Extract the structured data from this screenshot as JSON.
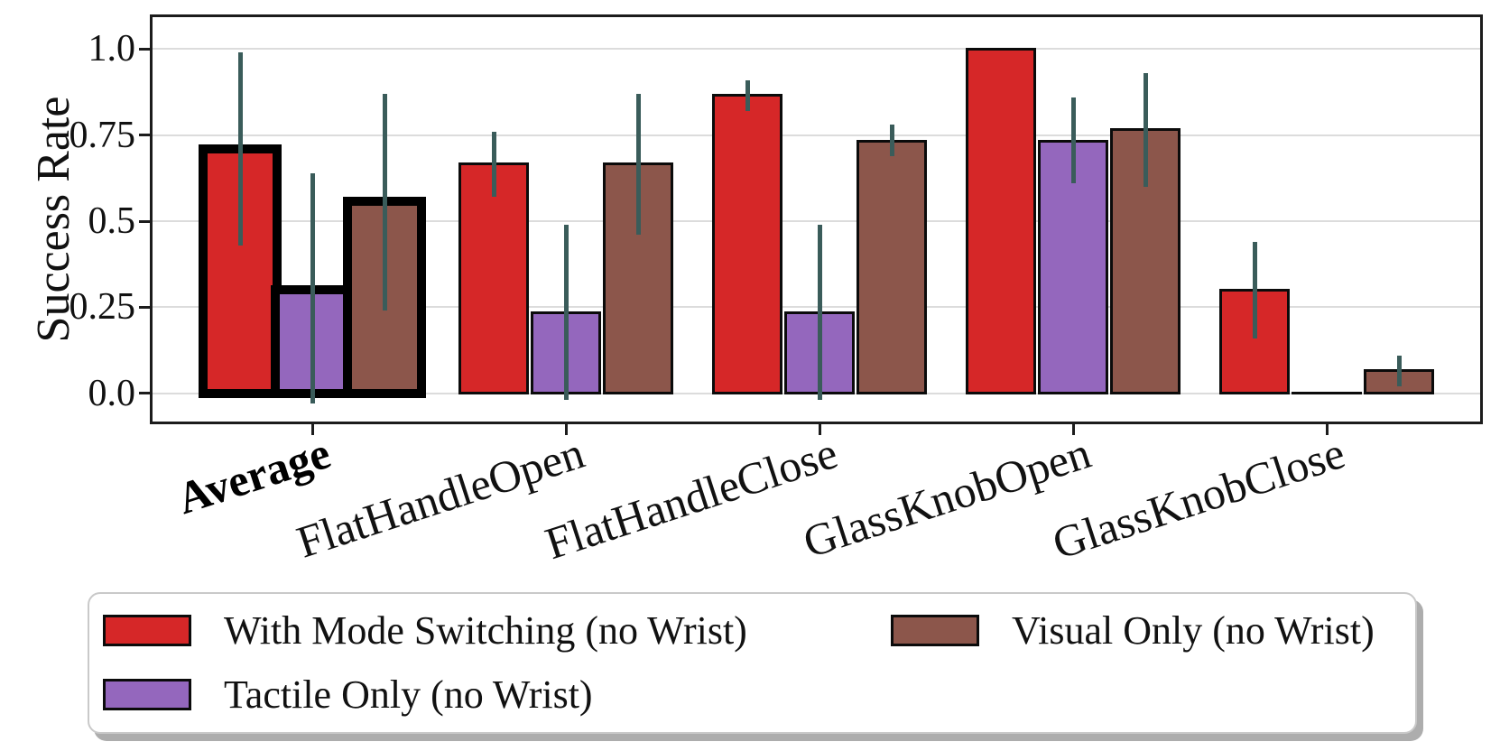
{
  "figure": {
    "background": "#ffffff"
  },
  "chart_data": {
    "type": "bar",
    "title": "",
    "xlabel": "",
    "ylabel": "Success Rate",
    "categories": [
      "Average",
      "FlatHandleOpen",
      "FlatHandleClose",
      "GlassKnobOpen",
      "GlassKnobClose"
    ],
    "highlight_category": "Average",
    "ylim": [
      -0.09,
      1.1
    ],
    "yticks": [
      0.0,
      0.25,
      0.5,
      0.75,
      1.0
    ],
    "ytick_labels": [
      "0.0",
      "0.25",
      "0.5",
      "0.75",
      "1.0"
    ],
    "grid": true,
    "legend_position": "bottom",
    "error_bar_color": "#3a5c5a",
    "bar_edge_color": "#0b0b0b",
    "highlight_edge_color": "#000000",
    "series": [
      {
        "name": "With Mode Switching (no Wrist)",
        "color": "#d62728",
        "values": [
          0.709,
          0.667,
          0.867,
          1.0,
          0.3
        ],
        "error_low": [
          0.43,
          0.57,
          0.82,
          null,
          0.16
        ],
        "error_high": [
          0.99,
          0.76,
          0.91,
          null,
          0.44
        ]
      },
      {
        "name": "Tactile Only (no Wrist)",
        "color": "#9467bd",
        "values": [
          0.3,
          0.233,
          0.233,
          0.733,
          0.0
        ],
        "error_low": [
          -0.03,
          -0.02,
          -0.02,
          0.61,
          null
        ],
        "error_high": [
          0.64,
          0.49,
          0.49,
          0.86,
          null
        ]
      },
      {
        "name": "Visual Only (no Wrist)",
        "color": "#8c564b",
        "values": [
          0.558,
          0.667,
          0.733,
          0.767,
          0.067
        ],
        "error_low": [
          0.24,
          0.46,
          0.69,
          0.6,
          0.02
        ],
        "error_high": [
          0.87,
          0.87,
          0.78,
          0.93,
          0.11
        ]
      }
    ]
  },
  "legend": {
    "items": [
      {
        "label": "With Mode Switching (no Wrist)",
        "color": "#d62728"
      },
      {
        "label": "Tactile Only (no Wrist)",
        "color": "#9467bd"
      },
      {
        "label": "Visual Only (no Wrist)",
        "color": "#8c564b"
      }
    ]
  }
}
